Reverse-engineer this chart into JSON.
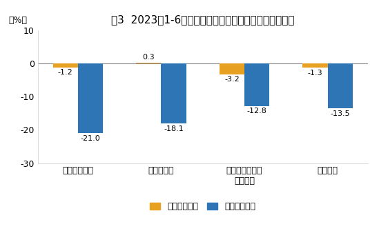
{
  "title": "图3  2023年1-6月份分经济类型营业收入与利润总额增速",
  "ylabel": "（%）",
  "categories": [
    "国有控股企业",
    "股份制企业",
    "外商及港澳台商\n投资企业",
    "私营企业"
  ],
  "revenue_values": [
    -1.2,
    0.3,
    -3.2,
    -1.3
  ],
  "profit_values": [
    -21.0,
    -18.1,
    -12.8,
    -13.5
  ],
  "revenue_color": "#E8A020",
  "profit_color": "#2E75B6",
  "ylim": [
    -30,
    10
  ],
  "yticks": [
    -30,
    -20,
    -10,
    0,
    10
  ],
  "legend_labels": [
    "营业收入增速",
    "利润总额增速"
  ],
  "bar_width": 0.3,
  "background_color": "#ffffff",
  "plot_bg_color": "#ffffff",
  "title_fontsize": 11,
  "tick_fontsize": 9,
  "label_fontsize": 8
}
